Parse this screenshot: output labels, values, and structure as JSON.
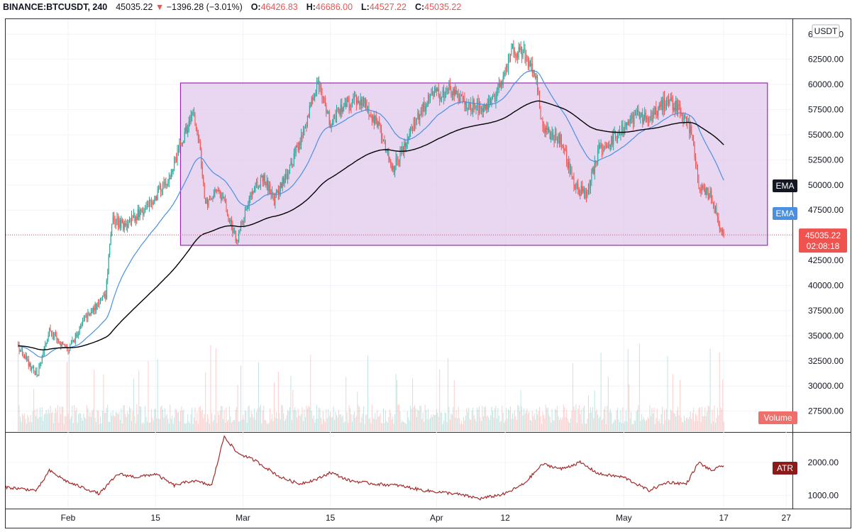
{
  "header": {
    "symbol": "BINANCE:BTCUSDT, 240",
    "last": "45035.22",
    "change": "−1396.28 (−3.01%)",
    "o_label": "O:",
    "o_value": "46426.83",
    "h_label": "H:",
    "h_value": "46686.00",
    "l_label": "L:",
    "l_value": "44527.22",
    "c_label": "C:",
    "c_value": "45035.22"
  },
  "colors": {
    "up": "#26a69a",
    "down": "#ef5350",
    "ema_fast": "#4a90e2",
    "ema_slow": "#000000",
    "rectangle_fill": "#e1c9ec",
    "rectangle_border": "#9c27b0",
    "atr": "#a52a2a",
    "price_line": "#ef5350"
  },
  "chart_data": [
    {
      "type": "candlestick",
      "currency": "USDT",
      "x_labels": [
        "Feb",
        "15",
        "Mar",
        "15",
        "Apr",
        "12",
        "May",
        "17",
        "27"
      ],
      "y_ticks": [
        "65000.00",
        "62500.00",
        "60000.00",
        "57500.00",
        "55000.00",
        "52500.00",
        "50000.00",
        "47500.00",
        "45000.00",
        "42500.00",
        "40000.00",
        "37500.00",
        "35000.00",
        "32500.00",
        "30000.00",
        "27500.00"
      ],
      "ylim": [
        25500,
        66500
      ],
      "close_path": [
        [
          "2021-01-24",
          33800
        ],
        [
          "2021-01-27",
          31000
        ],
        [
          "2021-01-29",
          35500
        ],
        [
          "2021-02-01",
          33500
        ],
        [
          "2021-02-04",
          37000
        ],
        [
          "2021-02-07",
          39000
        ],
        [
          "2021-02-08",
          46500
        ],
        [
          "2021-02-10",
          46000
        ],
        [
          "2021-02-14",
          48000
        ],
        [
          "2021-02-17",
          50500
        ],
        [
          "2021-02-19",
          54000
        ],
        [
          "2021-02-21",
          57500
        ],
        [
          "2021-02-22",
          54000
        ],
        [
          "2021-02-23",
          48000
        ],
        [
          "2021-02-25",
          50000
        ],
        [
          "2021-02-28",
          44500
        ],
        [
          "2021-03-02",
          48500
        ],
        [
          "2021-03-04",
          51000
        ],
        [
          "2021-03-06",
          48500
        ],
        [
          "2021-03-09",
          52500
        ],
        [
          "2021-03-11",
          56000
        ],
        [
          "2021-03-13",
          60500
        ],
        [
          "2021-03-15",
          56000
        ],
        [
          "2021-03-17",
          58000
        ],
        [
          "2021-03-20",
          58500
        ],
        [
          "2021-03-23",
          55500
        ],
        [
          "2021-03-25",
          51500
        ],
        [
          "2021-03-28",
          55500
        ],
        [
          "2021-03-31",
          58800
        ],
        [
          "2021-04-03",
          59500
        ],
        [
          "2021-04-06",
          58000
        ],
        [
          "2021-04-09",
          57500
        ],
        [
          "2021-04-11",
          59500
        ],
        [
          "2021-04-13",
          63500
        ],
        [
          "2021-04-15",
          63000
        ],
        [
          "2021-04-17",
          60500
        ],
        [
          "2021-04-18",
          55500
        ],
        [
          "2021-04-21",
          54500
        ],
        [
          "2021-04-23",
          50000
        ],
        [
          "2021-04-25",
          49000
        ],
        [
          "2021-04-27",
          53500
        ],
        [
          "2021-04-30",
          55000
        ],
        [
          "2021-05-03",
          57000
        ],
        [
          "2021-05-05",
          56500
        ],
        [
          "2021-05-08",
          58500
        ],
        [
          "2021-05-10",
          57500
        ],
        [
          "2021-05-12",
          55000
        ],
        [
          "2021-05-13",
          49500
        ],
        [
          "2021-05-15",
          49000
        ],
        [
          "2021-05-16",
          46500
        ],
        [
          "2021-05-17",
          45035.22
        ]
      ],
      "last_price": "45035.22",
      "countdown": "02:08:18",
      "rectangle": {
        "from": "2021-02-19",
        "to": "2021-05-24",
        "top": 60150,
        "bottom": 44000
      },
      "series": [
        {
          "label": "EMA",
          "kind": "ema",
          "length": 30
        },
        {
          "label": "EMA",
          "kind": "ema",
          "length": 8
        }
      ],
      "volume_label": "Volume"
    },
    {
      "type": "line",
      "label": "ATR",
      "y_ticks": [
        "2000.00",
        "1000.00"
      ],
      "ylim": [
        600,
        2900
      ],
      "path": [
        [
          "2021-01-22",
          1250
        ],
        [
          "2021-01-27",
          1150
        ],
        [
          "2021-01-29",
          1750
        ],
        [
          "2021-02-01",
          1400
        ],
        [
          "2021-02-06",
          1050
        ],
        [
          "2021-02-09",
          1650
        ],
        [
          "2021-02-12",
          1550
        ],
        [
          "2021-02-15",
          1650
        ],
        [
          "2021-02-18",
          1300
        ],
        [
          "2021-02-21",
          1450
        ],
        [
          "2021-02-24",
          1300
        ],
        [
          "2021-02-26",
          2800
        ],
        [
          "2021-02-28",
          2300
        ],
        [
          "2021-03-03",
          2050
        ],
        [
          "2021-03-07",
          1550
        ],
        [
          "2021-03-10",
          1350
        ],
        [
          "2021-03-13",
          1500
        ],
        [
          "2021-03-15",
          1700
        ],
        [
          "2021-03-18",
          1450
        ],
        [
          "2021-03-22",
          1350
        ],
        [
          "2021-03-26",
          1300
        ],
        [
          "2021-03-30",
          1150
        ],
        [
          "2021-04-04",
          1050
        ],
        [
          "2021-04-08",
          900
        ],
        [
          "2021-04-12",
          1050
        ],
        [
          "2021-04-15",
          1350
        ],
        [
          "2021-04-18",
          1950
        ],
        [
          "2021-04-21",
          1800
        ],
        [
          "2021-04-24",
          2000
        ],
        [
          "2021-04-27",
          1650
        ],
        [
          "2021-05-01",
          1550
        ],
        [
          "2021-05-05",
          1150
        ],
        [
          "2021-05-08",
          1400
        ],
        [
          "2021-05-11",
          1350
        ],
        [
          "2021-05-13",
          2000
        ],
        [
          "2021-05-15",
          1750
        ],
        [
          "2021-05-17",
          1900
        ]
      ],
      "value_label": "ATR"
    }
  ]
}
